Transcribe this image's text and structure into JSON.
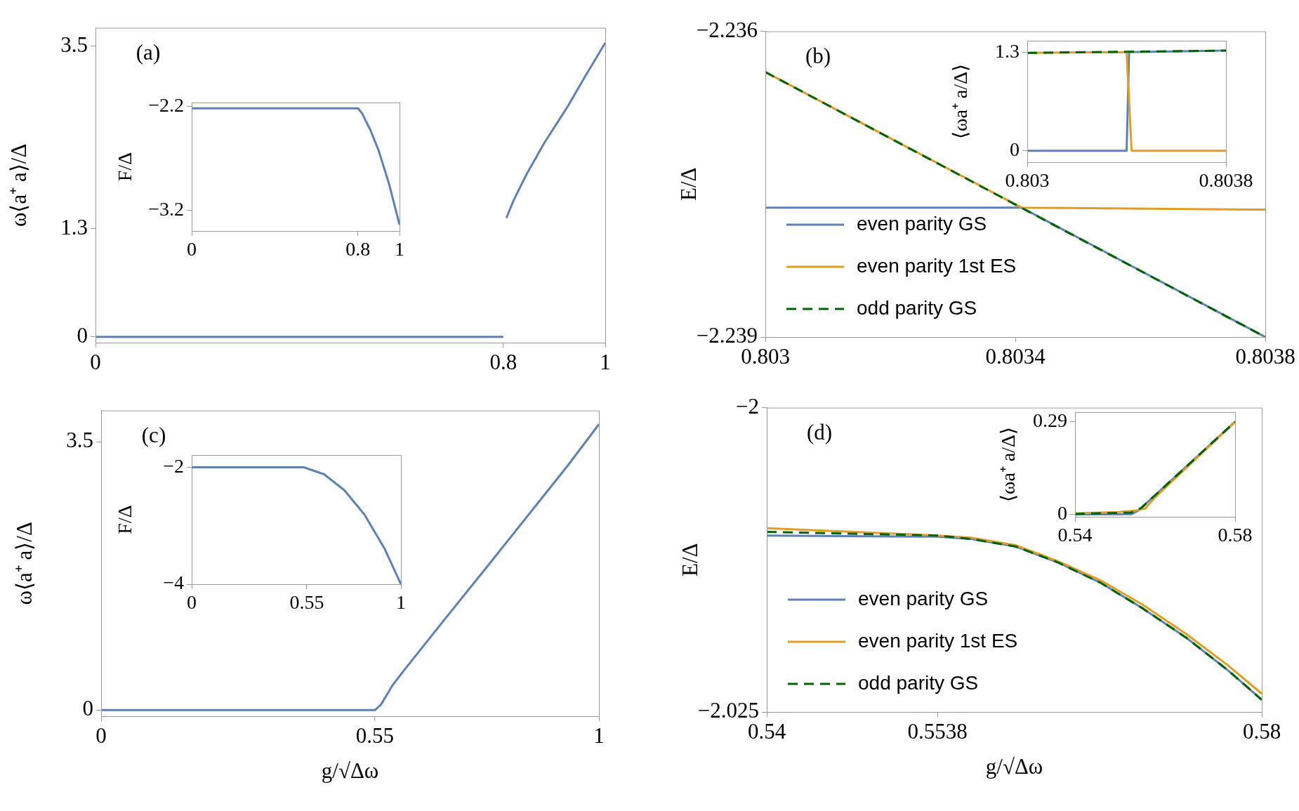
{
  "chart_data": [
    {
      "type": "line",
      "ylabel": "ω⟨a⁺ a⟩/Δ",
      "annotations": [
        "(a)"
      ],
      "xlim": [
        0,
        1
      ],
      "ylim": [
        -0.07,
        3.72
      ],
      "xticks": [
        0,
        0.8,
        1
      ],
      "yticks": [
        0,
        1.3,
        3.5
      ],
      "series": [
        {
          "color": "#5e81b5",
          "x": [
            0,
            0.8,
            0.803,
            0.806,
            0.82,
            0.845,
            0.88,
            0.925,
            0.96,
            1
          ],
          "values": [
            0,
            0,
            null,
            1.43,
            1.64,
            1.95,
            2.33,
            2.76,
            3.13,
            3.54
          ]
        }
      ]
    },
    {
      "type": "line",
      "ylabel": "F/Δ",
      "xlim": [
        0,
        1
      ],
      "ylim": [
        -3.4,
        -2.165
      ],
      "xticks": [
        0,
        0.8,
        1
      ],
      "yticks": [
        -3.2,
        -2.2
      ],
      "series": [
        {
          "color": "#5e81b5",
          "x": [
            0,
            0.8,
            0.82,
            0.86,
            0.9,
            0.95,
            1
          ],
          "values": [
            -2.22,
            -2.22,
            -2.27,
            -2.43,
            -2.63,
            -2.95,
            -3.34
          ]
        }
      ]
    },
    {
      "type": "line",
      "ylabel": "E/Δ",
      "annotations": [
        "(b)"
      ],
      "xlim": [
        0.803,
        0.8038
      ],
      "ylim": [
        -2.239,
        -2.236
      ],
      "xticks": [
        0.803,
        0.8034,
        0.8038
      ],
      "yticks": [
        -2.239,
        -2.236
      ],
      "legend": "bottom left",
      "series": [
        {
          "name": "even parity GS",
          "color": "#5e81b5",
          "x": [
            0.803,
            0.80341,
            0.8038
          ],
          "values": [
            -2.23773,
            -2.23773,
            -2.239
          ]
        },
        {
          "name": "even parity 1st ES",
          "color": "#e19c24",
          "x": [
            0.803,
            0.80341,
            0.8038
          ],
          "values": [
            -2.2364,
            -2.23773,
            -2.23775
          ]
        },
        {
          "name": "odd parity GS",
          "color": "#006400",
          "line_style": "dashed",
          "x": [
            0.803,
            0.8038
          ],
          "values": [
            -2.2364,
            -2.239
          ]
        }
      ]
    },
    {
      "type": "line",
      "ylabel": "⟨ωa⁺ a/Δ⟩",
      "xlim": [
        0.803,
        0.8038
      ],
      "ylim": [
        -0.15,
        1.45
      ],
      "xticks": [
        0.803,
        0.8038
      ],
      "yticks": [
        0,
        1.3
      ],
      "series": [
        {
          "color": "#5e81b5",
          "x": [
            0.803,
            0.8034,
            0.80341,
            0.8038
          ],
          "values": [
            0,
            0,
            1.3,
            1.32
          ]
        },
        {
          "color": "#e19c24",
          "x": [
            0.803,
            0.8034,
            0.80342,
            0.8038
          ],
          "values": [
            1.29,
            1.3,
            0,
            0
          ]
        },
        {
          "color": "#006400",
          "line_style": "dashed",
          "x": [
            0.803,
            0.8038
          ],
          "values": [
            1.29,
            1.32
          ]
        }
      ]
    },
    {
      "type": "line",
      "xlabel": "g/√Δω",
      "ylabel": "ω⟨a⁺ a⟩/Δ",
      "annotations": [
        "(c)"
      ],
      "xlim": [
        0,
        1
      ],
      "ylim": [
        -0.08,
        3.91
      ],
      "xticks": [
        0,
        0.55,
        1
      ],
      "yticks": [
        0,
        3.5
      ],
      "series": [
        {
          "color": "#5e81b5",
          "x": [
            0,
            0.55,
            0.562,
            0.586,
            0.611,
            0.692,
            0.774,
            0.855,
            0.936,
            1
          ],
          "values": [
            0,
            0,
            0.07,
            0.33,
            0.54,
            1.2,
            1.86,
            2.52,
            3.18,
            3.73
          ]
        }
      ]
    },
    {
      "type": "line",
      "ylabel": "F/Δ",
      "xlim": [
        0,
        1
      ],
      "ylim": [
        -4,
        -1.79
      ],
      "xticks": [
        0,
        0.55,
        1
      ],
      "yticks": [
        -4,
        -2
      ],
      "series": [
        {
          "color": "#5e81b5",
          "x": [
            0,
            0.536,
            0.633,
            0.729,
            0.826,
            0.923,
            1
          ],
          "values": [
            -2,
            -2,
            -2.12,
            -2.39,
            -2.81,
            -3.4,
            -4
          ]
        }
      ]
    },
    {
      "type": "line",
      "xlabel": "g/√Δω",
      "ylabel": "E/Δ",
      "annotations": [
        "(d)"
      ],
      "xlim": [
        0.54,
        0.58
      ],
      "ylim": [
        -2.025,
        -2
      ],
      "xticks": [
        0.54,
        0.5538,
        0.58
      ],
      "yticks": [
        -2.025,
        -2
      ],
      "legend": "bottom left",
      "series": [
        {
          "name": "even parity GS",
          "color": "#5e81b5",
          "x": [
            0.54,
            0.5538,
            0.5566,
            0.5601,
            0.5635,
            0.567,
            0.5704,
            0.5739,
            0.5773,
            0.58
          ],
          "values": [
            -2.0105,
            -2.0106,
            -2.0108,
            -2.0114,
            -2.0127,
            -2.0144,
            -2.0165,
            -2.0189,
            -2.0216,
            -2.024
          ]
        },
        {
          "name": "even parity 1st ES",
          "color": "#e19c24",
          "x": [
            0.54,
            0.5538,
            0.5566,
            0.5601,
            0.5635,
            0.567,
            0.5704,
            0.5739,
            0.5773,
            0.58
          ],
          "values": [
            -2.0099,
            -2.0105,
            -2.0107,
            -2.0113,
            -2.0126,
            -2.0142,
            -2.0162,
            -2.0186,
            -2.0212,
            -2.0235
          ]
        },
        {
          "name": "odd parity GS",
          "color": "#006400",
          "line_style": "dashed",
          "x": [
            0.54,
            0.5538,
            0.5566,
            0.5601,
            0.5635,
            0.567,
            0.5704,
            0.5739,
            0.5773,
            0.58
          ],
          "values": [
            -2.0102,
            -2.0105,
            -2.0108,
            -2.0114,
            -2.0127,
            -2.0144,
            -2.0165,
            -2.0189,
            -2.0216,
            -2.024
          ]
        }
      ]
    },
    {
      "type": "line",
      "ylabel": "⟨ωa⁺ a/Δ⟩",
      "xlim": [
        0.54,
        0.58
      ],
      "ylim": [
        -0.007,
        0.32
      ],
      "xticks": [
        0.54,
        0.58
      ],
      "yticks": [
        0,
        0.29
      ],
      "series": [
        {
          "color": "#5e81b5",
          "x": [
            0.54,
            0.554,
            0.5555,
            0.5565,
            0.58
          ],
          "values": [
            0,
            0.001,
            0.01,
            0.02,
            0.29
          ]
        },
        {
          "color": "#e19c24",
          "x": [
            0.54,
            0.55,
            0.555,
            0.557,
            0.5575,
            0.5597,
            0.58
          ],
          "values": [
            0.004,
            0.007,
            0.012,
            0.018,
            0.018,
            0.05,
            0.29
          ]
        },
        {
          "color": "#006400",
          "line_style": "dashed",
          "x": [
            0.54,
            0.554,
            0.5565,
            0.58
          ],
          "values": [
            0.002,
            0.006,
            0.02,
            0.29
          ]
        }
      ]
    }
  ]
}
